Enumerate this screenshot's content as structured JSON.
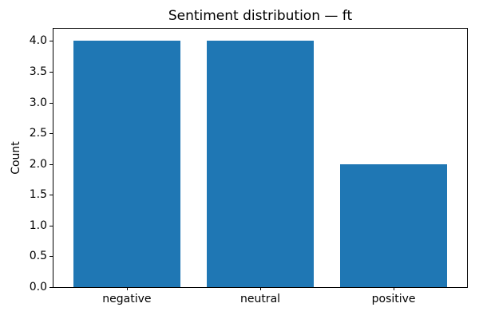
{
  "chart_data": {
    "type": "bar",
    "title": "Sentiment distribution — ft",
    "categories": [
      "negative",
      "neutral",
      "positive"
    ],
    "values": [
      4,
      4,
      2
    ],
    "xlabel": "",
    "ylabel": "Count",
    "xlim": [
      -0.55,
      2.55
    ],
    "ylim": [
      0,
      4.2
    ],
    "yticks": [
      0.0,
      0.5,
      1.0,
      1.5,
      2.0,
      2.5,
      3.0,
      3.5,
      4.0
    ],
    "ytick_labels": [
      "0.0",
      "0.5",
      "1.0",
      "1.5",
      "2.0",
      "2.5",
      "3.0",
      "3.5",
      "4.0"
    ],
    "bar_width": 0.8,
    "bar_color": "#1f77b4",
    "spine_color": "#000000",
    "text_color": "#000000",
    "background_color": "#ffffff",
    "grid": false,
    "legend": null
  }
}
